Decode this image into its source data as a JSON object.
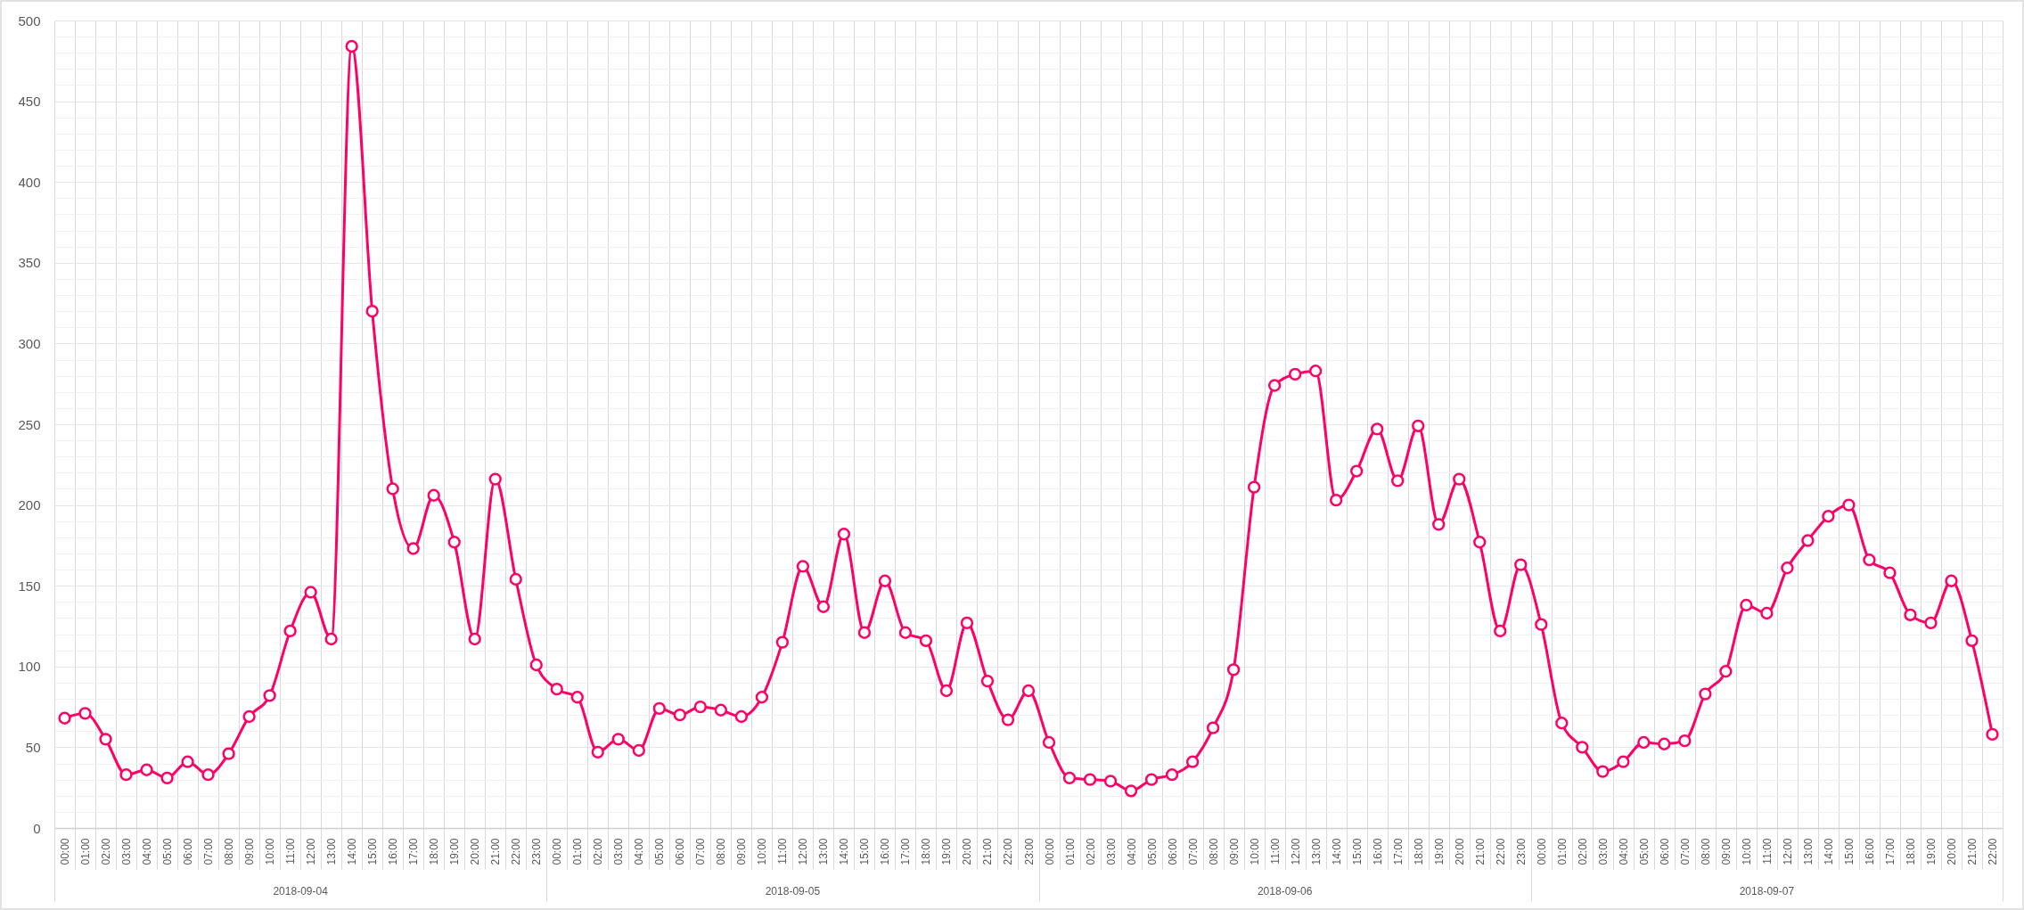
{
  "chart_data": {
    "type": "line",
    "x": [
      "2018-09-04T00:00",
      "2018-09-04T01:00",
      "2018-09-04T02:00",
      "2018-09-04T03:00",
      "2018-09-04T04:00",
      "2018-09-04T05:00",
      "2018-09-04T06:00",
      "2018-09-04T07:00",
      "2018-09-04T08:00",
      "2018-09-04T09:00",
      "2018-09-04T10:00",
      "2018-09-04T11:00",
      "2018-09-04T12:00",
      "2018-09-04T13:00",
      "2018-09-04T14:00",
      "2018-09-04T15:00",
      "2018-09-04T16:00",
      "2018-09-04T17:00",
      "2018-09-04T18:00",
      "2018-09-04T19:00",
      "2018-09-04T20:00",
      "2018-09-04T21:00",
      "2018-09-04T22:00",
      "2018-09-04T23:00",
      "2018-09-05T00:00",
      "2018-09-05T01:00",
      "2018-09-05T02:00",
      "2018-09-05T03:00",
      "2018-09-05T04:00",
      "2018-09-05T05:00",
      "2018-09-05T06:00",
      "2018-09-05T07:00",
      "2018-09-05T08:00",
      "2018-09-05T09:00",
      "2018-09-05T10:00",
      "2018-09-05T11:00",
      "2018-09-05T12:00",
      "2018-09-05T13:00",
      "2018-09-05T14:00",
      "2018-09-05T15:00",
      "2018-09-05T16:00",
      "2018-09-05T17:00",
      "2018-09-05T18:00",
      "2018-09-05T19:00",
      "2018-09-05T20:00",
      "2018-09-05T21:00",
      "2018-09-05T22:00",
      "2018-09-05T23:00",
      "2018-09-06T00:00",
      "2018-09-06T01:00",
      "2018-09-06T02:00",
      "2018-09-06T03:00",
      "2018-09-06T04:00",
      "2018-09-06T05:00",
      "2018-09-06T06:00",
      "2018-09-06T07:00",
      "2018-09-06T08:00",
      "2018-09-06T09:00",
      "2018-09-06T10:00",
      "2018-09-06T11:00",
      "2018-09-06T12:00",
      "2018-09-06T13:00",
      "2018-09-06T14:00",
      "2018-09-06T15:00",
      "2018-09-06T16:00",
      "2018-09-06T17:00",
      "2018-09-06T18:00",
      "2018-09-06T19:00",
      "2018-09-06T20:00",
      "2018-09-06T21:00",
      "2018-09-06T22:00",
      "2018-09-06T23:00",
      "2018-09-07T00:00",
      "2018-09-07T01:00",
      "2018-09-07T02:00",
      "2018-09-07T03:00",
      "2018-09-07T04:00",
      "2018-09-07T05:00",
      "2018-09-07T06:00",
      "2018-09-07T07:00",
      "2018-09-07T08:00",
      "2018-09-07T09:00",
      "2018-09-07T10:00",
      "2018-09-07T11:00",
      "2018-09-07T12:00",
      "2018-09-07T13:00",
      "2018-09-07T14:00",
      "2018-09-07T15:00",
      "2018-09-07T16:00",
      "2018-09-07T17:00",
      "2018-09-07T18:00",
      "2018-09-07T19:00",
      "2018-09-07T20:00",
      "2018-09-07T21:00",
      "2018-09-07T22:00"
    ],
    "series": [
      {
        "color": "#ff0066",
        "values": [
          68,
          71,
          55,
          33,
          36,
          31,
          41,
          33,
          46,
          69,
          82,
          122,
          146,
          117,
          484,
          320,
          210,
          173,
          206,
          177,
          117,
          216,
          154,
          101,
          86,
          81,
          47,
          55,
          48,
          74,
          70,
          75,
          73,
          69,
          81,
          115,
          162,
          137,
          182,
          121,
          153,
          121,
          116,
          85,
          127,
          91,
          67,
          85,
          53,
          31,
          30,
          29,
          23,
          30,
          33,
          41,
          62,
          98,
          211,
          274,
          281,
          283,
          203,
          221,
          247,
          215,
          249,
          188,
          216,
          177,
          122,
          163,
          126,
          65,
          50,
          35,
          41,
          53,
          52,
          54,
          83,
          97,
          138,
          133,
          161,
          178,
          193,
          200,
          166,
          158,
          132,
          127,
          153,
          116,
          58
        ]
      }
    ],
    "xlim": [
      "2018-09-03T23:30",
      "2018-09-07T22:30"
    ],
    "xticks": [
      {
        "value": "2018-09-04T00:00",
        "label": "00:00"
      },
      {
        "value": "2018-09-04T01:00",
        "label": "01:00"
      },
      {
        "value": "2018-09-04T02:00",
        "label": "02:00"
      },
      {
        "value": "2018-09-04T03:00",
        "label": "03:00"
      },
      {
        "value": "2018-09-04T04:00",
        "label": "04:00"
      },
      {
        "value": "2018-09-04T05:00",
        "label": "05:00"
      },
      {
        "value": "2018-09-04T06:00",
        "label": "06:00"
      },
      {
        "value": "2018-09-04T07:00",
        "label": "07:00"
      },
      {
        "value": "2018-09-04T08:00",
        "label": "08:00"
      },
      {
        "value": "2018-09-04T09:00",
        "label": "09:00"
      },
      {
        "value": "2018-09-04T10:00",
        "label": "10:00"
      },
      {
        "value": "2018-09-04T11:00",
        "label": "11:00"
      },
      {
        "value": "2018-09-04T12:00",
        "label": "12:00"
      },
      {
        "value": "2018-09-04T13:00",
        "label": "13:00"
      },
      {
        "value": "2018-09-04T14:00",
        "label": "14:00"
      },
      {
        "value": "2018-09-04T15:00",
        "label": "15:00"
      },
      {
        "value": "2018-09-04T16:00",
        "label": "16:00"
      },
      {
        "value": "2018-09-04T17:00",
        "label": "17:00"
      },
      {
        "value": "2018-09-04T18:00",
        "label": "18:00"
      },
      {
        "value": "2018-09-04T19:00",
        "label": "19:00"
      },
      {
        "value": "2018-09-04T20:00",
        "label": "20:00"
      },
      {
        "value": "2018-09-04T21:00",
        "label": "21:00"
      },
      {
        "value": "2018-09-04T22:00",
        "label": "22:00"
      },
      {
        "value": "2018-09-04T23:00",
        "label": "23:00"
      },
      {
        "value": "2018-09-05T00:00",
        "label": "00:00"
      },
      {
        "value": "2018-09-05T01:00",
        "label": "01:00"
      },
      {
        "value": "2018-09-05T02:00",
        "label": "02:00"
      },
      {
        "value": "2018-09-05T03:00",
        "label": "03:00"
      },
      {
        "value": "2018-09-05T04:00",
        "label": "04:00"
      },
      {
        "value": "2018-09-05T05:00",
        "label": "05:00"
      },
      {
        "value": "2018-09-05T06:00",
        "label": "06:00"
      },
      {
        "value": "2018-09-05T07:00",
        "label": "07:00"
      },
      {
        "value": "2018-09-05T08:00",
        "label": "08:00"
      },
      {
        "value": "2018-09-05T09:00",
        "label": "09:00"
      },
      {
        "value": "2018-09-05T10:00",
        "label": "10:00"
      },
      {
        "value": "2018-09-05T11:00",
        "label": "11:00"
      },
      {
        "value": "2018-09-05T12:00",
        "label": "12:00"
      },
      {
        "value": "2018-09-05T13:00",
        "label": "13:00"
      },
      {
        "value": "2018-09-05T14:00",
        "label": "14:00"
      },
      {
        "value": "2018-09-05T15:00",
        "label": "15:00"
      },
      {
        "value": "2018-09-05T16:00",
        "label": "16:00"
      },
      {
        "value": "2018-09-05T17:00",
        "label": "17:00"
      },
      {
        "value": "2018-09-05T18:00",
        "label": "18:00"
      },
      {
        "value": "2018-09-05T19:00",
        "label": "19:00"
      },
      {
        "value": "2018-09-05T20:00",
        "label": "20:00"
      },
      {
        "value": "2018-09-05T21:00",
        "label": "21:00"
      },
      {
        "value": "2018-09-05T22:00",
        "label": "22:00"
      },
      {
        "value": "2018-09-05T23:00",
        "label": "23:00"
      },
      {
        "value": "2018-09-06T00:00",
        "label": "00:00"
      },
      {
        "value": "2018-09-06T01:00",
        "label": "01:00"
      },
      {
        "value": "2018-09-06T02:00",
        "label": "02:00"
      },
      {
        "value": "2018-09-06T03:00",
        "label": "03:00"
      },
      {
        "value": "2018-09-06T04:00",
        "label": "04:00"
      },
      {
        "value": "2018-09-06T05:00",
        "label": "05:00"
      },
      {
        "value": "2018-09-06T06:00",
        "label": "06:00"
      },
      {
        "value": "2018-09-06T07:00",
        "label": "07:00"
      },
      {
        "value": "2018-09-06T08:00",
        "label": "08:00"
      },
      {
        "value": "2018-09-06T09:00",
        "label": "09:00"
      },
      {
        "value": "2018-09-06T10:00",
        "label": "10:00"
      },
      {
        "value": "2018-09-06T11:00",
        "label": "11:00"
      },
      {
        "value": "2018-09-06T12:00",
        "label": "12:00"
      },
      {
        "value": "2018-09-06T13:00",
        "label": "13:00"
      },
      {
        "value": "2018-09-06T14:00",
        "label": "14:00"
      },
      {
        "value": "2018-09-06T15:00",
        "label": "15:00"
      },
      {
        "value": "2018-09-06T16:00",
        "label": "16:00"
      },
      {
        "value": "2018-09-06T17:00",
        "label": "17:00"
      },
      {
        "value": "2018-09-06T18:00",
        "label": "18:00"
      },
      {
        "value": "2018-09-06T19:00",
        "label": "19:00"
      },
      {
        "value": "2018-09-06T20:00",
        "label": "20:00"
      },
      {
        "value": "2018-09-06T21:00",
        "label": "21:00"
      },
      {
        "value": "2018-09-06T22:00",
        "label": "22:00"
      },
      {
        "value": "2018-09-06T23:00",
        "label": "23:00"
      },
      {
        "value": "2018-09-07T00:00",
        "label": "00:00"
      },
      {
        "value": "2018-09-07T01:00",
        "label": "01:00"
      },
      {
        "value": "2018-09-07T02:00",
        "label": "02:00"
      },
      {
        "value": "2018-09-07T03:00",
        "label": "03:00"
      },
      {
        "value": "2018-09-07T04:00",
        "label": "04:00"
      },
      {
        "value": "2018-09-07T05:00",
        "label": "05:00"
      },
      {
        "value": "2018-09-07T06:00",
        "label": "06:00"
      },
      {
        "value": "2018-09-07T07:00",
        "label": "07:00"
      },
      {
        "value": "2018-09-07T08:00",
        "label": "08:00"
      },
      {
        "value": "2018-09-07T09:00",
        "label": "09:00"
      },
      {
        "value": "2018-09-07T10:00",
        "label": "10:00"
      },
      {
        "value": "2018-09-07T11:00",
        "label": "11:00"
      },
      {
        "value": "2018-09-07T12:00",
        "label": "12:00"
      },
      {
        "value": "2018-09-07T13:00",
        "label": "13:00"
      },
      {
        "value": "2018-09-07T14:00",
        "label": "14:00"
      },
      {
        "value": "2018-09-07T15:00",
        "label": "15:00"
      },
      {
        "value": "2018-09-07T16:00",
        "label": "16:00"
      },
      {
        "value": "2018-09-07T17:00",
        "label": "17:00"
      },
      {
        "value": "2018-09-07T18:00",
        "label": "18:00"
      },
      {
        "value": "2018-09-07T19:00",
        "label": "19:00"
      },
      {
        "value": "2018-09-07T20:00",
        "label": "20:00"
      },
      {
        "value": "2018-09-07T21:00",
        "label": "21:00"
      },
      {
        "value": "2018-09-07T22:00",
        "label": "22:00"
      }
    ],
    "ylim": [
      0,
      500
    ],
    "yticks": [
      0,
      50,
      100,
      150,
      200,
      250,
      300,
      350,
      400,
      450,
      500
    ],
    "annotations": [
      "2018-09-04",
      "2018-09-05",
      "2018-09-06",
      "2018-09-07"
    ],
    "grid": true,
    "marker": "circle",
    "line_style": "solid"
  }
}
